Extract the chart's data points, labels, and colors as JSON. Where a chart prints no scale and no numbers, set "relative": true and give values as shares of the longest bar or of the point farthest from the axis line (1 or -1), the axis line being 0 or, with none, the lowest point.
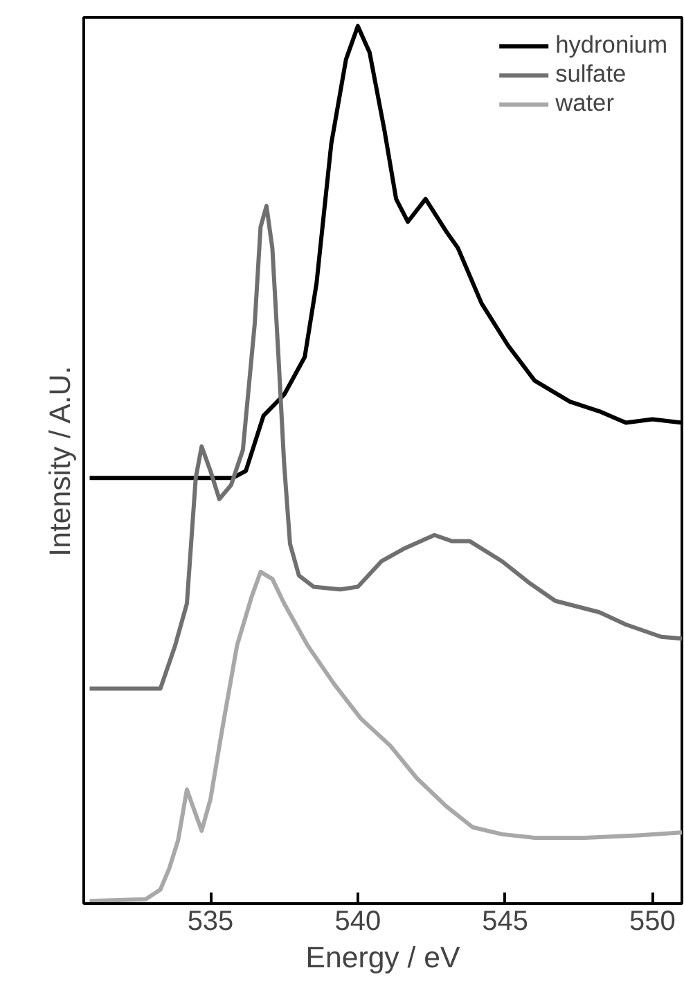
{
  "chart_data": {
    "type": "line",
    "xlabel": "Energy / eV",
    "ylabel": "Intensity / A.U.",
    "relative": true,
    "xlim": [
      530.7,
      551
    ],
    "xticks": [
      535,
      540,
      545,
      550
    ],
    "tick_labels": "x",
    "grid": false,
    "legend": "top right",
    "line_style": "solid",
    "marker": "none",
    "series": [
      {
        "name": "hydronium",
        "color": "#000000",
        "x": [
          530.9,
          535.75,
          536.2,
          536.8,
          537.5,
          538.2,
          538.6,
          539.1,
          539.6,
          540.0,
          540.4,
          540.9,
          541.3,
          541.7,
          542.3,
          543.0,
          543.4,
          544.2,
          545.1,
          546.0,
          547.2,
          548.2,
          549.1,
          550.0,
          551.0
        ],
        "values": [
          0.485,
          0.485,
          0.493,
          0.556,
          0.58,
          0.623,
          0.707,
          0.866,
          0.962,
          1.0,
          0.97,
          0.882,
          0.803,
          0.777,
          0.803,
          0.766,
          0.747,
          0.684,
          0.636,
          0.596,
          0.572,
          0.561,
          0.548,
          0.552,
          0.548
        ]
      },
      {
        "name": "sulfate",
        "color": "#707070",
        "x": [
          530.9,
          533.3,
          533.8,
          534.2,
          534.5,
          534.7,
          535.0,
          535.3,
          535.7,
          536.1,
          536.5,
          536.7,
          536.9,
          537.1,
          537.3,
          537.5,
          537.7,
          538.0,
          538.5,
          539.4,
          540.0,
          540.8,
          541.6,
          542.6,
          543.2,
          543.8,
          544.9,
          545.8,
          546.7,
          548.2,
          549.1,
          550.3,
          551.0
        ],
        "values": [
          0.245,
          0.245,
          0.294,
          0.342,
          0.485,
          0.521,
          0.493,
          0.461,
          0.477,
          0.517,
          0.66,
          0.771,
          0.795,
          0.747,
          0.628,
          0.501,
          0.41,
          0.374,
          0.361,
          0.358,
          0.361,
          0.39,
          0.405,
          0.42,
          0.413,
          0.413,
          0.39,
          0.366,
          0.345,
          0.332,
          0.318,
          0.304,
          0.302
        ]
      },
      {
        "name": "water",
        "color": "#a8a8a8",
        "x": [
          530.9,
          532.8,
          533.3,
          533.6,
          533.9,
          534.2,
          534.4,
          534.7,
          535.0,
          535.4,
          535.9,
          536.4,
          536.7,
          537.1,
          537.5,
          538.3,
          539.2,
          540.1,
          541.1,
          542.0,
          543.0,
          543.9,
          544.9,
          546.0,
          547.7,
          549.6,
          551.0
        ],
        "values": [
          0.003,
          0.005,
          0.016,
          0.04,
          0.072,
          0.13,
          0.111,
          0.083,
          0.119,
          0.199,
          0.294,
          0.35,
          0.378,
          0.37,
          0.342,
          0.294,
          0.25,
          0.211,
          0.18,
          0.143,
          0.111,
          0.087,
          0.079,
          0.075,
          0.075,
          0.078,
          0.081
        ]
      }
    ]
  }
}
